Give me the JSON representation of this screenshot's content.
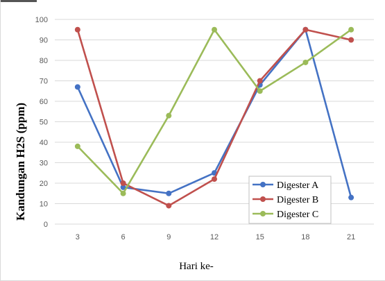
{
  "chart_data": {
    "type": "line",
    "title": "",
    "xlabel": "Hari ke-",
    "ylabel": "Kandungan  H2S (ppm)",
    "x": [
      3,
      6,
      9,
      12,
      15,
      18,
      21
    ],
    "ylim": [
      0,
      100
    ],
    "yticks": [
      0,
      10,
      20,
      30,
      40,
      50,
      60,
      70,
      80,
      90,
      100
    ],
    "grid": "horizontal",
    "legend_position": "bottom-right",
    "series": [
      {
        "name": "Digester A",
        "color": "#4472c4",
        "values": [
          67,
          18,
          15,
          25,
          68,
          95,
          13
        ]
      },
      {
        "name": "Digester B",
        "color": "#c0504d",
        "values": [
          95,
          20,
          9,
          22,
          70,
          95,
          90
        ]
      },
      {
        "name": "Digester C",
        "color": "#9bbb59",
        "values": [
          38,
          15,
          53,
          95,
          65,
          79,
          95
        ]
      }
    ]
  }
}
